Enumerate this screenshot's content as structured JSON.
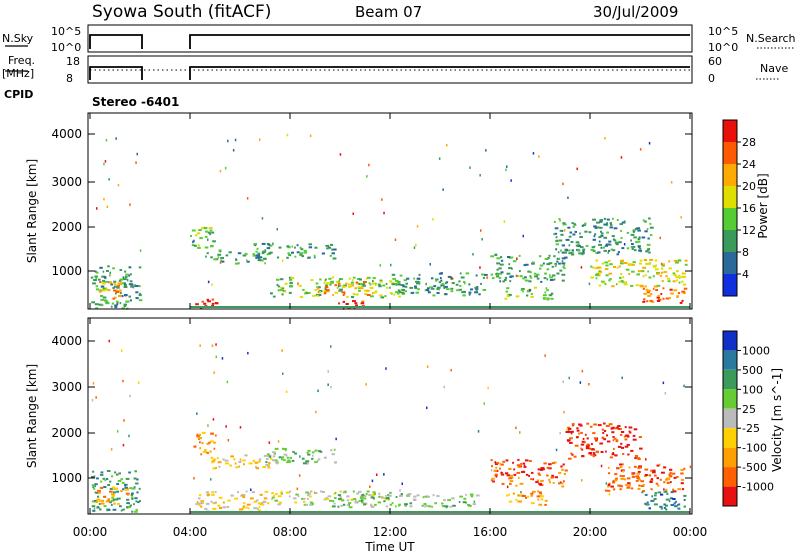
{
  "header": {
    "title": "Syowa South (fitACF)",
    "beam": "Beam 07",
    "date": "30/Jul/2009"
  },
  "panels": {
    "nsky": {
      "label": "N.Sky",
      "ticks": [
        "10^5",
        "10^0"
      ],
      "right_ticks": [
        "10^5",
        "10^0"
      ],
      "right_label": "N.Search"
    },
    "freq": {
      "label_line1": "Freq.",
      "label_line2": "[MHz]",
      "ticks": [
        "18",
        "8"
      ],
      "right_ticks": [
        "60",
        "0"
      ],
      "right_label": "Nave"
    },
    "cpid": {
      "label": "CPID",
      "value": "Stereo -6401"
    }
  },
  "power_panel": {
    "ylabel": "Slant Range [km]",
    "yticks": [
      "4000",
      "3000",
      "2000",
      "1000"
    ],
    "colorbar": {
      "label": "Power [dB]",
      "ticks": [
        "28",
        "24",
        "20",
        "16",
        "12",
        "8",
        "4"
      ],
      "colors": [
        "#e8100a",
        "#ff5a00",
        "#ffaa00",
        "#dede00",
        "#55cc33",
        "#3a9a5a",
        "#2a6a9a",
        "#1030e0"
      ]
    }
  },
  "velocity_panel": {
    "ylabel": "Slant Range [km]",
    "yticks": [
      "4000",
      "3000",
      "2000",
      "1000"
    ],
    "colorbar": {
      "label": "Velocity [m s^-1]",
      "ticks": [
        "1000",
        "500",
        "100",
        "25",
        "-25",
        "-100",
        "-500",
        "-1000"
      ],
      "colors": [
        "#1030c8",
        "#2a7aa0",
        "#3c9a5a",
        "#66cc33",
        "#bbbbbb",
        "#ffd000",
        "#ffa000",
        "#ff6000",
        "#e81010"
      ]
    }
  },
  "xaxis": {
    "label": "Time UT",
    "ticks": [
      "00:00",
      "04:00",
      "08:00",
      "12:00",
      "16:00",
      "20:00",
      "00:00"
    ]
  },
  "chart_data": {
    "type": "heatmap",
    "x_range_hours": [
      0,
      24
    ],
    "y_range_km": [
      180,
      4500
    ],
    "power_regions": [
      {
        "t0": 0.0,
        "t1": 2.0,
        "r0": 200,
        "r1": 1150,
        "level": 2
      },
      {
        "t0": 0.2,
        "t1": 1.2,
        "r0": 400,
        "r1": 800,
        "level": 5
      },
      {
        "t0": 4.0,
        "t1": 5.0,
        "r0": 1500,
        "r1": 2000,
        "level": 3
      },
      {
        "t0": 4.6,
        "t1": 7.0,
        "r0": 1200,
        "r1": 1500,
        "level": 2
      },
      {
        "t0": 6.5,
        "t1": 9.8,
        "r0": 1300,
        "r1": 1650,
        "level": 2
      },
      {
        "t0": 4.2,
        "t1": 5.2,
        "r0": 220,
        "r1": 420,
        "level": 7
      },
      {
        "t0": 7.0,
        "t1": 12.5,
        "r0": 450,
        "r1": 900,
        "level": 3
      },
      {
        "t0": 9.0,
        "t1": 11.5,
        "r0": 500,
        "r1": 800,
        "level": 5
      },
      {
        "t0": 9.8,
        "t1": 10.9,
        "r0": 200,
        "r1": 380,
        "level": 7
      },
      {
        "t0": 12.0,
        "t1": 15.8,
        "r0": 500,
        "r1": 1000,
        "level": 2
      },
      {
        "t0": 16.0,
        "t1": 19.0,
        "r0": 800,
        "r1": 1400,
        "level": 2
      },
      {
        "t0": 16.5,
        "t1": 18.5,
        "r0": 400,
        "r1": 700,
        "level": 3
      },
      {
        "t0": 18.5,
        "t1": 22.5,
        "r0": 1400,
        "r1": 2200,
        "level": 2
      },
      {
        "t0": 20.0,
        "t1": 23.8,
        "r0": 700,
        "r1": 1300,
        "level": 4
      },
      {
        "t0": 22.0,
        "t1": 23.8,
        "r0": 300,
        "r1": 700,
        "level": 6
      }
    ],
    "velocity_regions": [
      {
        "t0": 0.0,
        "t1": 2.0,
        "r0": 250,
        "r1": 1150,
        "level": 2
      },
      {
        "t0": 0.2,
        "t1": 1.5,
        "r0": 400,
        "r1": 800,
        "level": 6
      },
      {
        "t0": 4.0,
        "t1": 5.0,
        "r0": 1500,
        "r1": 2000,
        "level": 6
      },
      {
        "t0": 4.6,
        "t1": 7.2,
        "r0": 1200,
        "r1": 1500,
        "level": 5
      },
      {
        "t0": 7.0,
        "t1": 9.8,
        "r0": 1300,
        "r1": 1650,
        "level": 3
      },
      {
        "t0": 4.2,
        "t1": 7.0,
        "r0": 250,
        "r1": 700,
        "level": 5
      },
      {
        "t0": 7.0,
        "t1": 12.0,
        "r0": 400,
        "r1": 700,
        "level": 4
      },
      {
        "t0": 9.5,
        "t1": 15.5,
        "r0": 350,
        "r1": 650,
        "level": 3
      },
      {
        "t0": 16.0,
        "t1": 19.0,
        "r0": 800,
        "r1": 1400,
        "level": 7
      },
      {
        "t0": 16.5,
        "t1": 18.5,
        "r0": 400,
        "r1": 700,
        "level": 6
      },
      {
        "t0": 19.0,
        "t1": 22.0,
        "r0": 1400,
        "r1": 2200,
        "level": 8
      },
      {
        "t0": 20.5,
        "t1": 23.8,
        "r0": 700,
        "r1": 1300,
        "level": 7
      },
      {
        "t0": 22.0,
        "t1": 23.8,
        "r0": 300,
        "r1": 700,
        "level": 1
      }
    ]
  }
}
